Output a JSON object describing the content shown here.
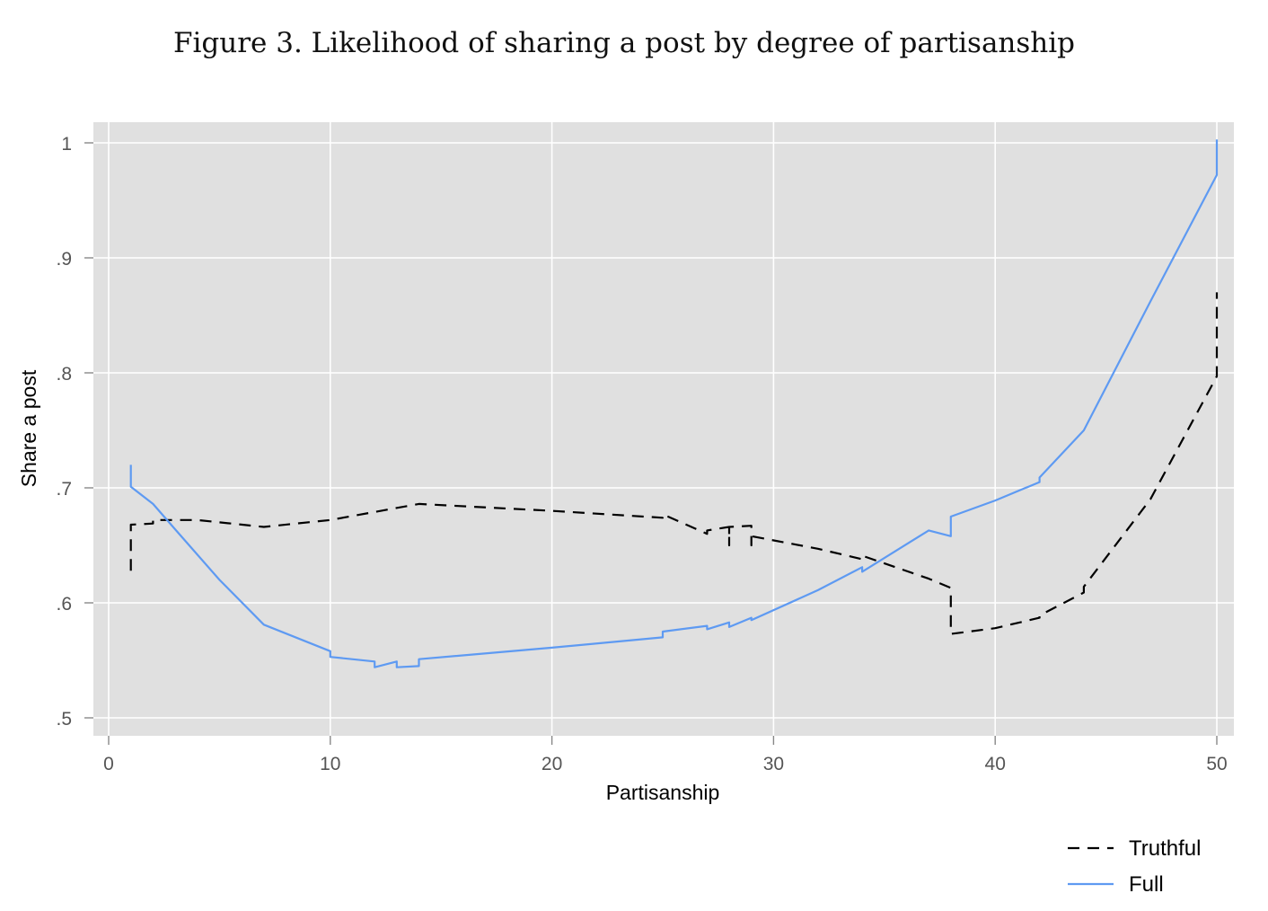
{
  "chart_data": {
    "type": "line",
    "title": "Figure 3.  Likelihood of sharing a post by degree of partisanship",
    "xlabel": "Partisanship",
    "ylabel": "Share a post",
    "xlim": [
      0,
      50
    ],
    "ylim": [
      0.5,
      1.0
    ],
    "xticks": [
      0,
      10,
      20,
      30,
      40,
      50
    ],
    "xtick_labels": [
      "0",
      "10",
      "20",
      "30",
      "40",
      "50"
    ],
    "yticks": [
      0.5,
      0.6,
      0.7,
      0.8,
      0.9,
      1.0
    ],
    "ytick_labels": [
      ".5",
      ".6",
      ".7",
      ".8",
      ".9",
      "1"
    ],
    "grid": true,
    "legend_position": "bottom-right",
    "series": [
      {
        "name": "Truthful",
        "color": "#000000",
        "line_style": "dashed",
        "x": [
          1,
          1,
          1,
          2,
          2,
          4,
          7,
          10,
          14,
          20,
          25,
          25,
          27,
          27,
          28,
          28,
          28,
          29,
          29,
          29,
          32,
          34,
          34,
          37,
          38,
          38,
          38,
          40,
          42,
          42,
          44,
          44,
          47,
          50,
          50
        ],
        "y": [
          0.628,
          0.668,
          0.668,
          0.669,
          0.672,
          0.672,
          0.666,
          0.672,
          0.686,
          0.68,
          0.674,
          0.677,
          0.66,
          0.663,
          0.666,
          0.65,
          0.666,
          0.667,
          0.65,
          0.658,
          0.647,
          0.638,
          0.641,
          0.621,
          0.613,
          0.573,
          0.573,
          0.578,
          0.587,
          0.589,
          0.609,
          0.614,
          0.69,
          0.797,
          0.87
        ]
      },
      {
        "name": "Full",
        "color": "#5E9AF2",
        "line_style": "solid",
        "x": [
          1,
          1,
          2,
          3,
          5,
          7,
          10,
          10,
          12,
          12,
          13,
          13,
          14,
          14,
          20,
          25,
          25,
          27,
          27,
          28,
          28,
          29,
          29,
          32,
          34,
          34,
          37,
          38,
          38,
          40,
          42,
          42,
          44,
          47,
          50,
          50
        ],
        "y": [
          0.72,
          0.701,
          0.686,
          0.664,
          0.62,
          0.581,
          0.558,
          0.553,
          0.549,
          0.544,
          0.549,
          0.544,
          0.545,
          0.551,
          0.561,
          0.57,
          0.575,
          0.58,
          0.577,
          0.583,
          0.579,
          0.587,
          0.585,
          0.611,
          0.631,
          0.627,
          0.663,
          0.658,
          0.675,
          0.689,
          0.705,
          0.709,
          0.75,
          0.862,
          0.972,
          1.003
        ]
      }
    ]
  }
}
